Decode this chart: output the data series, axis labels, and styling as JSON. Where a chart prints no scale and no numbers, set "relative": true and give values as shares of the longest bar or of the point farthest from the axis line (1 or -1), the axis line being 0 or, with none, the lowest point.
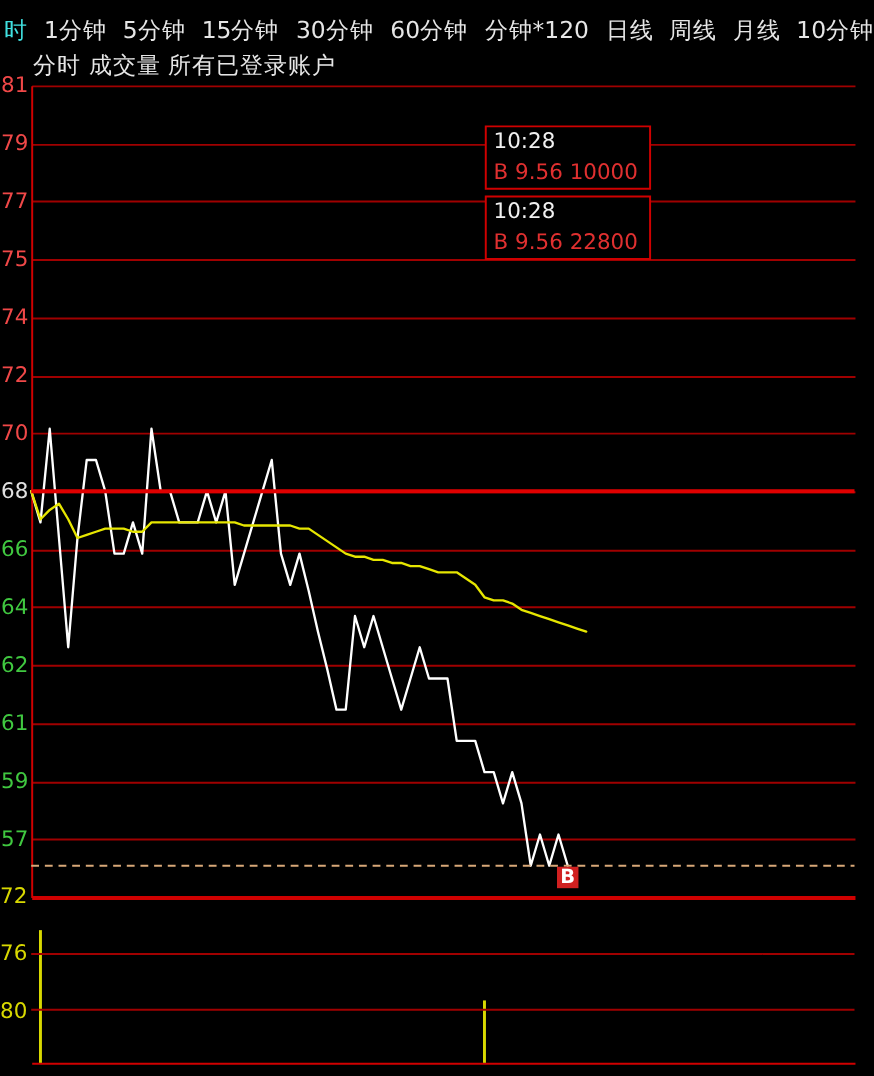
{
  "chart_data": [
    {
      "type": "line",
      "title": "分时 成交量 所有已登录账户",
      "categories": [
        null,
        null,
        null,
        null,
        null,
        null,
        null,
        null,
        null,
        null,
        null,
        null,
        null,
        null,
        null,
        null,
        null,
        null,
        null,
        null,
        null,
        null,
        null,
        null,
        null,
        null,
        null,
        null,
        null,
        null,
        null,
        null,
        null,
        null,
        null,
        null,
        null,
        null,
        null,
        null,
        null,
        null,
        null,
        null,
        null,
        null,
        null,
        null,
        null,
        null,
        null,
        null,
        null,
        null,
        null,
        null,
        null,
        null,
        null,
        null,
        null,
        null,
        null,
        null,
        null,
        null,
        null,
        null,
        null,
        null,
        null,
        null,
        null,
        null,
        null,
        null,
        null,
        null,
        null,
        null,
        null,
        null,
        null,
        null,
        null,
        null,
        null,
        null,
        null,
        null
      ],
      "series": [
        {
          "color": "#ffffff",
          "values": [
            68,
            67,
            70,
            66.5,
            63,
            66.5,
            69,
            69,
            68,
            66,
            66,
            67,
            66,
            70,
            68,
            68,
            67,
            67,
            67,
            68,
            67,
            68,
            65,
            66,
            67,
            68,
            69,
            66,
            65,
            66,
            64.8,
            63.5,
            62.3,
            61,
            61,
            64,
            63,
            64,
            63,
            62,
            61,
            62,
            63,
            62,
            62,
            62,
            60,
            60,
            60,
            59,
            59,
            58,
            59,
            58,
            56,
            57,
            56,
            57,
            56,
            null,
            null,
            null,
            null,
            null,
            null,
            null,
            null,
            null,
            null,
            null,
            null,
            null,
            null,
            null,
            null,
            null,
            null,
            null,
            null,
            null,
            null,
            null,
            null,
            null,
            null,
            null,
            null,
            null,
            null,
            null
          ]
        },
        {
          "color": "#e6e600",
          "values": [
            68,
            67.1,
            67.4,
            67.6,
            67.1,
            66.5,
            66.6,
            66.7,
            66.8,
            66.8,
            66.8,
            66.7,
            66.7,
            67.0,
            67.0,
            67.0,
            67.0,
            67.0,
            67.0,
            67.0,
            67.0,
            67.0,
            67.0,
            66.9,
            66.9,
            66.9,
            66.9,
            66.9,
            66.9,
            66.8,
            66.8,
            66.6,
            66.4,
            66.2,
            66.0,
            65.9,
            65.9,
            65.8,
            65.8,
            65.7,
            65.7,
            65.6,
            65.6,
            65.5,
            65.4,
            65.4,
            65.4,
            65.2,
            65.0,
            64.6,
            64.5,
            64.5,
            64.4,
            64.2,
            64.1,
            64.0,
            63.9,
            63.8,
            63.7,
            63.6,
            63.5,
            null,
            null,
            null,
            null,
            null,
            null,
            null,
            null,
            null,
            null,
            null,
            null,
            null,
            null,
            null,
            null,
            null,
            null,
            null,
            null,
            null,
            null,
            null,
            null,
            null,
            null,
            null,
            null,
            null
          ]
        }
      ],
      "ylim": [
        55,
        81
      ],
      "yticks": [
        81,
        {
          "value": 79.14,
          "label": "79"
        },
        {
          "value": 77.29,
          "label": "77"
        },
        {
          "value": 75.43,
          "label": "75"
        },
        {
          "value": 73.57,
          "label": "74"
        },
        {
          "value": 71.71,
          "label": "72"
        },
        {
          "value": 69.86,
          "label": "70"
        },
        68,
        {
          "value": 66.14,
          "label": "66"
        },
        {
          "value": 64.29,
          "label": "64"
        },
        {
          "value": 62.43,
          "label": "62"
        },
        {
          "value": 60.57,
          "label": "61"
        },
        {
          "value": 58.71,
          "label": "59"
        },
        {
          "value": 56.86,
          "label": "57"
        }
      ],
      "grid": "y",
      "tick_labels": "y",
      "ref_lines": [
        {
          "axis": "y",
          "value": 68,
          "color": "#e00000"
        },
        {
          "axis": "y",
          "value": 56,
          "color": "#d8a878",
          "line_style": "dashed"
        }
      ],
      "annotations": [
        "10:28\nB 9.56 10000",
        "10:28\nB 9.56 22800",
        {
          "text": "B",
          "y": 56
        }
      ]
    },
    {
      "type": "bar",
      "relative": true,
      "categories": [
        null,
        null,
        null,
        null,
        null,
        null,
        null,
        null,
        null,
        null,
        null,
        null,
        null,
        null,
        null,
        null,
        null,
        null,
        null,
        null,
        null,
        null,
        null,
        null,
        null,
        null,
        null,
        null,
        null,
        null,
        null,
        null,
        null,
        null,
        null,
        null,
        null,
        null,
        null,
        null,
        null,
        null,
        null,
        null,
        null,
        null,
        null,
        null,
        null,
        null,
        null,
        null,
        null,
        null,
        null,
        null,
        null,
        null,
        null,
        null,
        null,
        null,
        null,
        null,
        null,
        null,
        null,
        null,
        null,
        null,
        null,
        null,
        null,
        null,
        null,
        null,
        null,
        null,
        null,
        null,
        null,
        null,
        null,
        null,
        null,
        null,
        null,
        null,
        null,
        null
      ],
      "series": [
        {
          "color": "#d8d800",
          "values": [
            null,
            1,
            null,
            null,
            null,
            null,
            null,
            null,
            null,
            null,
            null,
            null,
            null,
            null,
            null,
            null,
            null,
            null,
            null,
            null,
            null,
            null,
            null,
            null,
            null,
            null,
            null,
            null,
            null,
            null,
            null,
            null,
            null,
            null,
            null,
            null,
            null,
            null,
            null,
            null,
            null,
            null,
            null,
            null,
            null,
            null,
            null,
            null,
            null,
            0.47,
            null,
            null,
            null,
            null,
            null,
            null,
            null,
            null,
            null,
            null,
            null,
            null,
            null,
            null,
            null,
            null,
            null,
            null,
            null,
            null,
            null,
            null,
            null,
            null,
            null,
            null,
            null,
            null,
            null,
            null,
            null,
            null,
            null,
            null,
            null,
            null,
            null,
            null,
            null,
            null
          ]
        }
      ],
      "tick_labels": false,
      "ref_lines": [
        {
          "axis": "y",
          "value": 0.82,
          "color": "#a00000"
        },
        {
          "axis": "y",
          "value": 0.4,
          "color": "#a00000"
        }
      ],
      "annotations": [
        "72",
        "76",
        "80"
      ]
    },
    {
      "type": "other",
      "annotations": [
        "时",
        "1分钟",
        "5分钟",
        "15分钟",
        "30分钟",
        "60分钟",
        "分钟*120",
        "日线",
        "周线",
        "月线",
        "10分钟"
      ]
    }
  ]
}
